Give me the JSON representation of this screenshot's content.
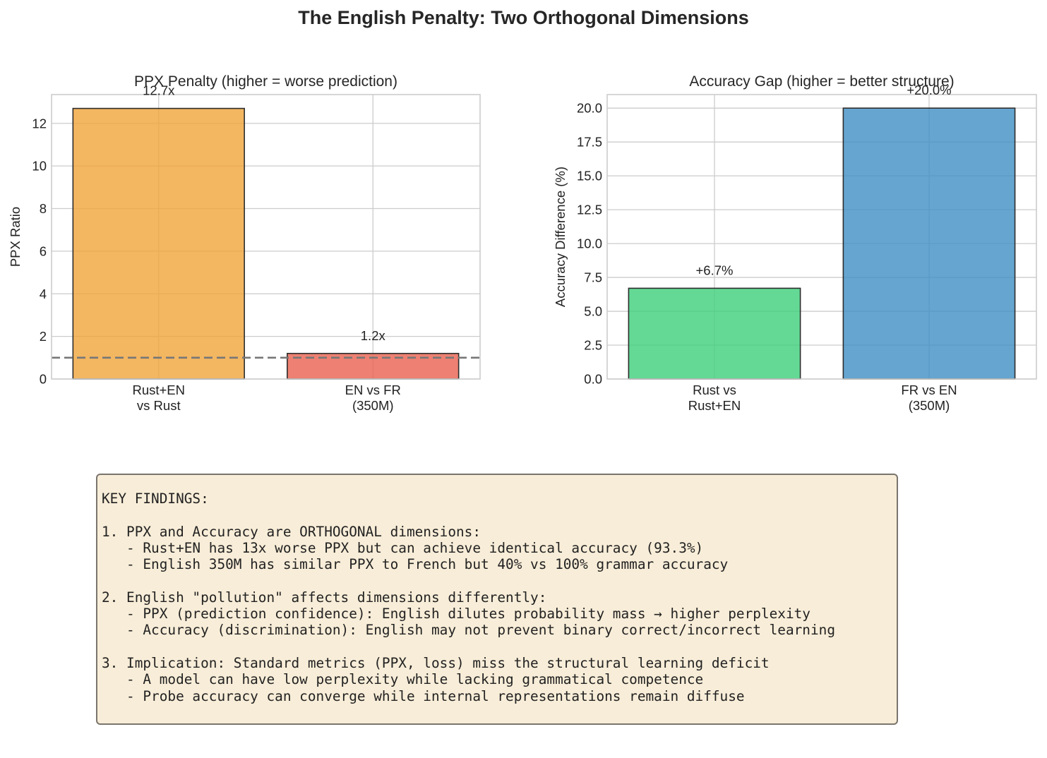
{
  "figure_title": "The English Penalty: Two Orthogonal Dimensions",
  "chart_data": [
    {
      "type": "bar",
      "title": "PPX Penalty (higher = worse prediction)",
      "xlabel": "",
      "ylabel": "PPX Ratio",
      "categories": [
        "Rust+EN\nvs Rust",
        "EN vs FR\n(350M)"
      ],
      "values": [
        12.7,
        1.2
      ],
      "value_labels": [
        "12.7x",
        "1.2x"
      ],
      "colors": [
        "#f0a43a",
        "#e8604f"
      ],
      "ylim": [
        0,
        13.35
      ],
      "yticks": [
        0,
        2,
        4,
        6,
        8,
        10,
        12
      ],
      "ytick_labels": [
        "0",
        "2",
        "4",
        "6",
        "8",
        "10",
        "12"
      ],
      "reference_line": {
        "y": 1.0,
        "style": "dashed",
        "color": "#777777"
      },
      "grid": true
    },
    {
      "type": "bar",
      "title": "Accuracy Gap (higher = better structure)",
      "xlabel": "",
      "ylabel": "Accuracy Difference (%)",
      "categories": [
        "Rust vs\nRust+EN",
        "FR vs EN\n(350M)"
      ],
      "values": [
        6.7,
        20.0
      ],
      "value_labels": [
        "+6.7%",
        "+20.0%"
      ],
      "colors": [
        "#3dd07a",
        "#3e8fc4"
      ],
      "ylim": [
        0,
        21
      ],
      "yticks": [
        0,
        2.5,
        5,
        7.5,
        10,
        12.5,
        15,
        17.5,
        20
      ],
      "ytick_labels": [
        "0.0",
        "2.5",
        "5.0",
        "7.5",
        "10.0",
        "12.5",
        "15.0",
        "17.5",
        "20.0"
      ],
      "grid": true
    }
  ],
  "findings": {
    "lines": [
      "KEY FINDINGS:",
      "",
      "1. PPX and Accuracy are ORTHOGONAL dimensions:",
      "   - Rust+EN has 13x worse PPX but can achieve identical accuracy (93.3%)",
      "   - English 350M has similar PPX to French but 40% vs 100% grammar accuracy",
      "",
      "2. English \"pollution\" affects dimensions differently:",
      "   - PPX (prediction confidence): English dilutes probability mass → higher perplexity",
      "   - Accuracy (discrimination): English may not prevent binary correct/incorrect learning",
      "",
      "3. Implication: Standard metrics (PPX, loss) miss the structural learning deficit",
      "   - A model can have low perplexity while lacking grammatical competence",
      "   - Probe accuracy can converge while internal representations remain diffuse"
    ]
  }
}
